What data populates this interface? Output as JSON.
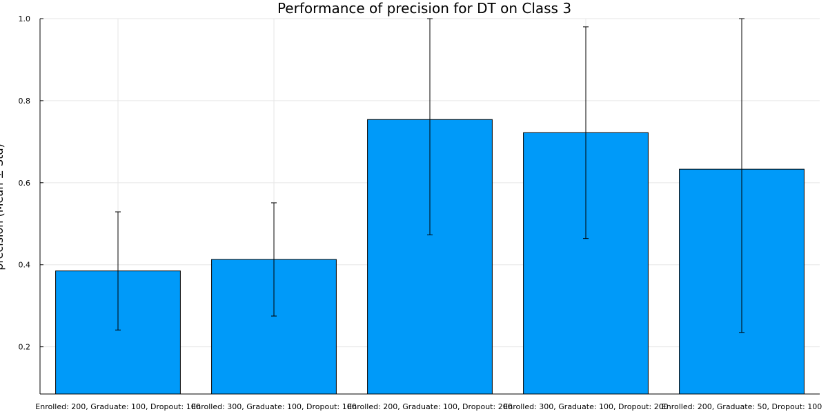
{
  "chart_data": {
    "type": "bar",
    "title": "Performance of precision for DT on Class 3",
    "xlabel": "",
    "ylabel": "precision (Mean ± Std)",
    "categories": [
      "Enrolled: 200, Graduate: 100, Dropout: 100",
      "Enrolled: 300, Graduate: 100, Dropout: 100",
      "Enrolled: 200, Graduate: 100, Dropout: 200",
      "Enrolled: 300, Graduate: 100, Dropout: 200",
      "Enrolled: 200, Graduate: 50, Dropout: 100"
    ],
    "series": [
      {
        "values": [
          0.385,
          0.413,
          0.754,
          0.722,
          0.633
        ],
        "error": [
          0.144,
          0.138,
          0.281,
          0.258,
          0.398
        ]
      }
    ],
    "ylim": [
      0.085,
      1.0
    ],
    "yticks": [
      0.2,
      0.4,
      0.6,
      0.8,
      1.0
    ],
    "grid": true,
    "legend": "none",
    "colors": {
      "bar": "#009af9",
      "error": "#000000"
    }
  }
}
